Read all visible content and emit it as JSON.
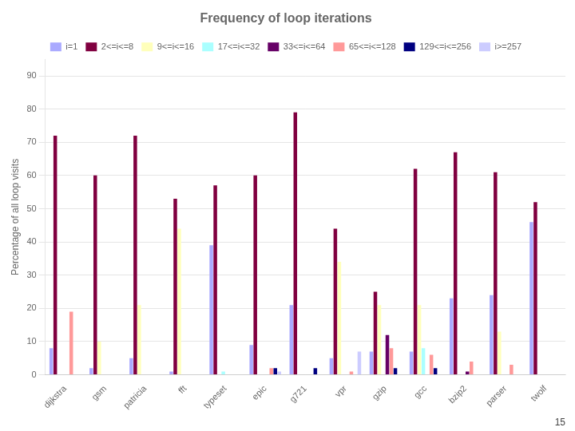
{
  "chart_data": {
    "type": "bar",
    "title": "Frequency of loop iterations",
    "ylabel": "Percentage of all loop visits",
    "categories": [
      "dijkstra",
      "gsm",
      "patricia",
      "fft",
      "typeset",
      "epic",
      "g721",
      "vpr",
      "gzip",
      "gcc",
      "bzip2",
      "parser",
      "twolf"
    ],
    "series": [
      {
        "name": "i=1",
        "color": "#aaaaff",
        "values": [
          8,
          2,
          5,
          1,
          39,
          9,
          21,
          5,
          7,
          7,
          23,
          24,
          46
        ]
      },
      {
        "name": "2<=i<=8",
        "color": "#800040",
        "values": [
          72,
          60,
          72,
          53,
          57,
          60,
          79,
          44,
          25,
          62,
          67,
          61,
          52
        ]
      },
      {
        "name": "9<=i<=16",
        "color": "#ffffbb",
        "values": [
          0,
          10,
          21,
          44,
          0,
          0,
          0,
          34,
          21,
          21,
          0,
          13,
          0
        ]
      },
      {
        "name": "17<=i<=32",
        "color": "#aaffff",
        "values": [
          0,
          0,
          0,
          0,
          1,
          0,
          0,
          0,
          0,
          8,
          0,
          0,
          0
        ]
      },
      {
        "name": "33<=i<=64",
        "color": "#660066",
        "values": [
          0,
          0,
          0,
          0,
          0,
          0,
          0,
          0,
          12,
          0,
          1,
          0,
          0
        ]
      },
      {
        "name": "65<=i<=128",
        "color": "#ff9999",
        "values": [
          19,
          0,
          0,
          0,
          0,
          2,
          0,
          1,
          8,
          6,
          4,
          3,
          0
        ]
      },
      {
        "name": "129<=i<=256",
        "color": "#000080",
        "values": [
          0,
          0,
          0,
          0,
          0,
          2,
          2,
          0,
          2,
          2,
          0,
          0,
          0
        ]
      },
      {
        "name": "i>=257",
        "color": "#ccccff",
        "values": [
          0,
          0,
          0,
          0,
          0,
          1,
          0,
          7,
          0,
          0,
          0,
          0,
          0
        ]
      }
    ],
    "ylim": [
      0,
      95
    ],
    "yticks": [
      0,
      10,
      20,
      30,
      40,
      50,
      60,
      70,
      80,
      90
    ],
    "grid": true,
    "legend": "top",
    "annotations": [
      "15"
    ]
  }
}
